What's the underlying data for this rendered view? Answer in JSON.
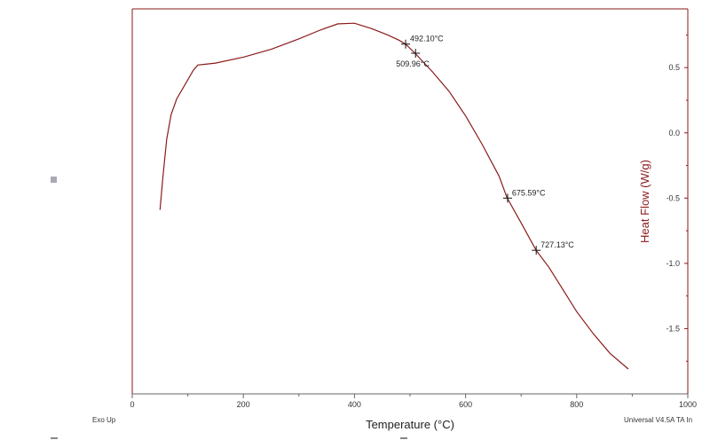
{
  "chart_data": {
    "type": "line",
    "title": "",
    "xlabel": "Temperature (°C)",
    "ylabel": "Heat Flow (W/g)",
    "xlim": [
      0,
      1000
    ],
    "ylim": [
      -2.0,
      0.95
    ],
    "x_ticks": [
      "0",
      "200",
      "400",
      "600",
      "800",
      "1000"
    ],
    "y_ticks": [
      "0.5",
      "0.0",
      "-0.5",
      "-1.0",
      "-1.5"
    ],
    "series": [
      {
        "color": "#8b1a1a",
        "points": [
          [
            50,
            -0.59
          ],
          [
            55,
            -0.35
          ],
          [
            62,
            -0.05
          ],
          [
            70,
            0.14
          ],
          [
            80,
            0.26
          ],
          [
            95,
            0.37
          ],
          [
            110,
            0.48
          ],
          [
            118,
            0.52
          ],
          [
            130,
            0.525
          ],
          [
            150,
            0.535
          ],
          [
            200,
            0.58
          ],
          [
            250,
            0.64
          ],
          [
            300,
            0.72
          ],
          [
            340,
            0.79
          ],
          [
            370,
            0.835
          ],
          [
            400,
            0.84
          ],
          [
            430,
            0.8
          ],
          [
            460,
            0.75
          ],
          [
            480,
            0.71
          ],
          [
            492,
            0.68
          ],
          [
            509,
            0.61
          ],
          [
            540,
            0.47
          ],
          [
            570,
            0.32
          ],
          [
            600,
            0.13
          ],
          [
            630,
            -0.09
          ],
          [
            660,
            -0.33
          ],
          [
            675,
            -0.5
          ],
          [
            700,
            -0.69
          ],
          [
            727,
            -0.9
          ],
          [
            750,
            -1.03
          ],
          [
            775,
            -1.2
          ],
          [
            800,
            -1.37
          ],
          [
            830,
            -1.54
          ],
          [
            860,
            -1.69
          ],
          [
            893,
            -1.81
          ]
        ]
      }
    ],
    "annotations": [
      {
        "x": 492.1,
        "y": 0.68,
        "label": "492.10°C",
        "label_position": "right"
      },
      {
        "x": 509.96,
        "y": 0.61,
        "label": "509.96°C",
        "label_position": "below"
      },
      {
        "x": 675.59,
        "y": -0.5,
        "label": "675.59°C",
        "label_position": "right"
      },
      {
        "x": 727.13,
        "y": -0.9,
        "label": "727.13°C",
        "label_position": "right"
      }
    ],
    "grid": false,
    "footer_left": "Exo Up",
    "footer_right": "Universal V4.5A TA In"
  }
}
